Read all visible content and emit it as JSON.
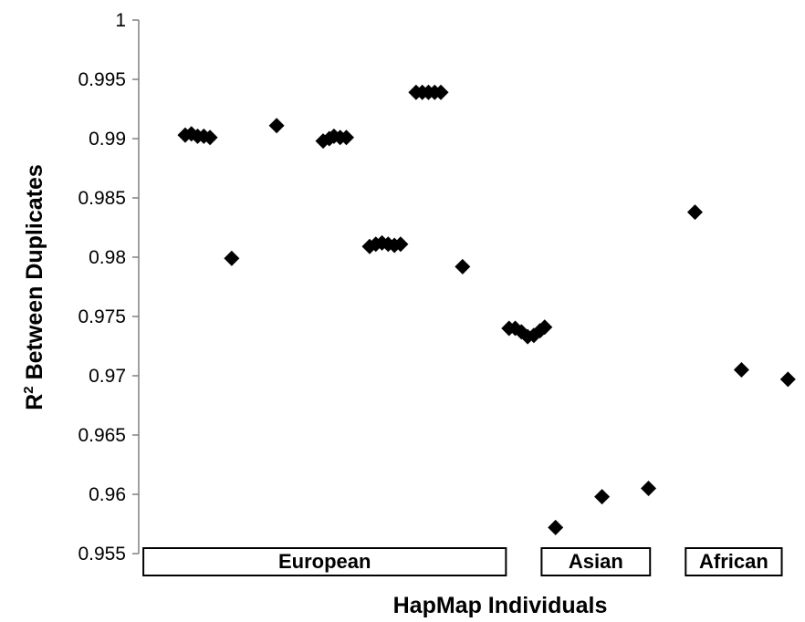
{
  "chart_data": {
    "type": "scatter",
    "title": "",
    "xlabel": "HapMap Individuals",
    "ylabel_main": "R",
    "ylabel_sup": "2",
    "ylabel_rest": " Between Duplicates",
    "ylim": [
      0.955,
      1
    ],
    "y_ticks": [
      "1",
      "0.995",
      "0.99",
      "0.985",
      "0.98",
      "0.975",
      "0.97",
      "0.965",
      "0.96",
      "0.955"
    ],
    "x_range": [
      0,
      43
    ],
    "grid": false,
    "legend": "none",
    "marker": "diamond",
    "marker_color": "#000000",
    "groups": [
      {
        "label": "European",
        "x_start": 0.3,
        "x_end": 23.7
      },
      {
        "label": "Asian",
        "x_start": 26.0,
        "x_end": 33.0
      },
      {
        "label": "African",
        "x_start": 35.3,
        "x_end": 41.5
      }
    ],
    "points": [
      {
        "x": 3.0,
        "y": 0.9903
      },
      {
        "x": 3.4,
        "y": 0.9904
      },
      {
        "x": 3.8,
        "y": 0.9902
      },
      {
        "x": 4.2,
        "y": 0.9902
      },
      {
        "x": 4.6,
        "y": 0.9901
      },
      {
        "x": 6.0,
        "y": 0.9799
      },
      {
        "x": 8.9,
        "y": 0.9911
      },
      {
        "x": 11.9,
        "y": 0.9898
      },
      {
        "x": 12.3,
        "y": 0.99
      },
      {
        "x": 12.6,
        "y": 0.9902
      },
      {
        "x": 13.0,
        "y": 0.9901
      },
      {
        "x": 13.4,
        "y": 0.9901
      },
      {
        "x": 14.9,
        "y": 0.9809
      },
      {
        "x": 15.3,
        "y": 0.9811
      },
      {
        "x": 15.7,
        "y": 0.9812
      },
      {
        "x": 16.1,
        "y": 0.9811
      },
      {
        "x": 16.5,
        "y": 0.981
      },
      {
        "x": 16.9,
        "y": 0.9811
      },
      {
        "x": 17.9,
        "y": 0.9939
      },
      {
        "x": 18.3,
        "y": 0.9939
      },
      {
        "x": 18.7,
        "y": 0.9939
      },
      {
        "x": 19.1,
        "y": 0.9939
      },
      {
        "x": 19.5,
        "y": 0.9939
      },
      {
        "x": 20.9,
        "y": 0.9792
      },
      {
        "x": 23.9,
        "y": 0.974
      },
      {
        "x": 24.3,
        "y": 0.974
      },
      {
        "x": 24.7,
        "y": 0.9737
      },
      {
        "x": 25.1,
        "y": 0.9733
      },
      {
        "x": 25.5,
        "y": 0.9734
      },
      {
        "x": 25.9,
        "y": 0.9738
      },
      {
        "x": 26.2,
        "y": 0.9741
      },
      {
        "x": 26.9,
        "y": 0.9572
      },
      {
        "x": 29.9,
        "y": 0.9598
      },
      {
        "x": 32.9,
        "y": 0.9605
      },
      {
        "x": 35.9,
        "y": 0.9838
      },
      {
        "x": 38.9,
        "y": 0.9705
      },
      {
        "x": 41.9,
        "y": 0.9697
      }
    ]
  }
}
